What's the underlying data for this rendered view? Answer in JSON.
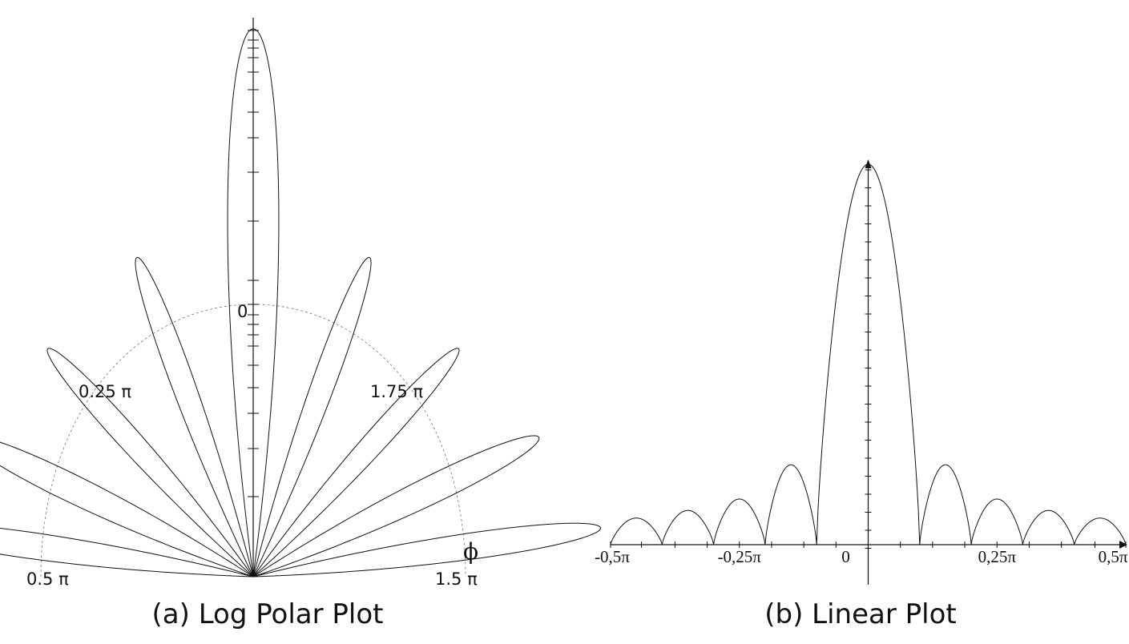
{
  "chart_data": [
    {
      "type": "polar-line",
      "caption": "(a)   Log Polar Plot",
      "angle_labels": [
        "0",
        "0.25 π",
        "1.75 π",
        "0.5 π",
        "1.5 π"
      ],
      "angle_symbol": "ϕ",
      "reference_circle": "dashed",
      "lobes": [
        {
          "angle_deg": 0,
          "relative_radius": 1.0,
          "half_width_deg": 7.5
        },
        {
          "angle_deg": 20,
          "relative_radius": 0.62,
          "half_width_deg": 5.5
        },
        {
          "angle_deg": -20,
          "relative_radius": 0.62,
          "half_width_deg": 5.5
        },
        {
          "angle_deg": 42,
          "relative_radius": 0.56,
          "half_width_deg": 6
        },
        {
          "angle_deg": -42,
          "relative_radius": 0.56,
          "half_width_deg": 6
        },
        {
          "angle_deg": 64,
          "relative_radius": 0.58,
          "half_width_deg": 7
        },
        {
          "angle_deg": -64,
          "relative_radius": 0.58,
          "half_width_deg": 7
        },
        {
          "angle_deg": 82,
          "relative_radius": 0.64,
          "half_width_deg": 6
        },
        {
          "angle_deg": -82,
          "relative_radius": 0.64,
          "half_width_deg": 6
        }
      ]
    },
    {
      "type": "line",
      "caption": "(b)   Linear Plot",
      "x_tick_labels": [
        "-0,5π",
        "-0,25π",
        "0",
        "0,25π",
        "0,5π"
      ],
      "x_tick_values": [
        -0.5,
        -0.25,
        0,
        0.25,
        0.5
      ],
      "xlim": [
        -0.5,
        0.5
      ],
      "ylim": [
        -0.1,
        1.0
      ],
      "arches": [
        {
          "from": -0.5,
          "to": -0.4,
          "peak": 0.07
        },
        {
          "from": -0.4,
          "to": -0.3,
          "peak": 0.09
        },
        {
          "from": -0.3,
          "to": -0.2,
          "peak": 0.12
        },
        {
          "from": -0.2,
          "to": -0.1,
          "peak": 0.21
        },
        {
          "from": -0.1,
          "to": 0.1,
          "peak": 1.0
        },
        {
          "from": 0.1,
          "to": 0.2,
          "peak": 0.21
        },
        {
          "from": 0.2,
          "to": 0.3,
          "peak": 0.12
        },
        {
          "from": 0.3,
          "to": 0.4,
          "peak": 0.09
        },
        {
          "from": 0.4,
          "to": 0.5,
          "peak": 0.07
        }
      ]
    }
  ]
}
